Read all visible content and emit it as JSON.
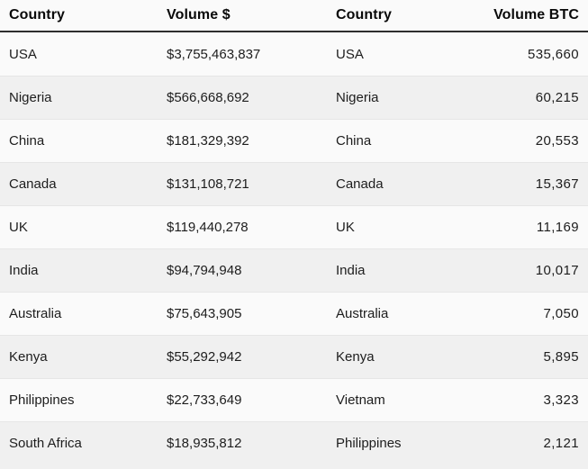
{
  "colors": {
    "header_bg": "#fafafa",
    "header_text": "#0a0a0a",
    "header_divider": "#2e2e2e",
    "row_light": "#fafafa",
    "row_dark": "#f0f0f0",
    "body_text": "#1d1d1d"
  },
  "table": {
    "headers": [
      "Country",
      "Volume $",
      "Country",
      "Volume BTC"
    ],
    "rows": [
      [
        "USA",
        "$3,755,463,837",
        "USA",
        "535,660"
      ],
      [
        "Nigeria",
        "$566,668,692",
        "Nigeria",
        "60,215"
      ],
      [
        "China",
        "$181,329,392",
        "China",
        "20,553"
      ],
      [
        "Canada",
        "$131,108,721",
        "Canada",
        "15,367"
      ],
      [
        "UK",
        "$119,440,278",
        "UK",
        "11,169"
      ],
      [
        "India",
        "$94,794,948",
        "India",
        "10,017"
      ],
      [
        "Australia",
        "$75,643,905",
        "Australia",
        "7,050"
      ],
      [
        "Kenya",
        "$55,292,942",
        "Kenya",
        "5,895"
      ],
      [
        "Philippines",
        "$22,733,649",
        "Vietnam",
        "3,323"
      ],
      [
        "South Africa",
        "$18,935,812",
        "Philippines",
        "2,121"
      ]
    ]
  },
  "chart_data": {
    "type": "table",
    "tables": [
      {
        "title": "Volume $",
        "columns": [
          "Country",
          "Volume $"
        ],
        "rows": [
          [
            "USA",
            3755463837
          ],
          [
            "Nigeria",
            566668692
          ],
          [
            "China",
            181329392
          ],
          [
            "Canada",
            131108721
          ],
          [
            "UK",
            119440278
          ],
          [
            "India",
            94794948
          ],
          [
            "Australia",
            75643905
          ],
          [
            "Kenya",
            55292942
          ],
          [
            "Philippines",
            22733649
          ],
          [
            "South Africa",
            18935812
          ]
        ]
      },
      {
        "title": "Volume BTC",
        "columns": [
          "Country",
          "Volume BTC"
        ],
        "rows": [
          [
            "USA",
            535660
          ],
          [
            "Nigeria",
            60215
          ],
          [
            "China",
            20553
          ],
          [
            "Canada",
            15367
          ],
          [
            "UK",
            11169
          ],
          [
            "India",
            10017
          ],
          [
            "Australia",
            7050
          ],
          [
            "Kenya",
            5895
          ],
          [
            "Vietnam",
            3323
          ],
          [
            "Philippines",
            2121
          ]
        ]
      }
    ]
  }
}
